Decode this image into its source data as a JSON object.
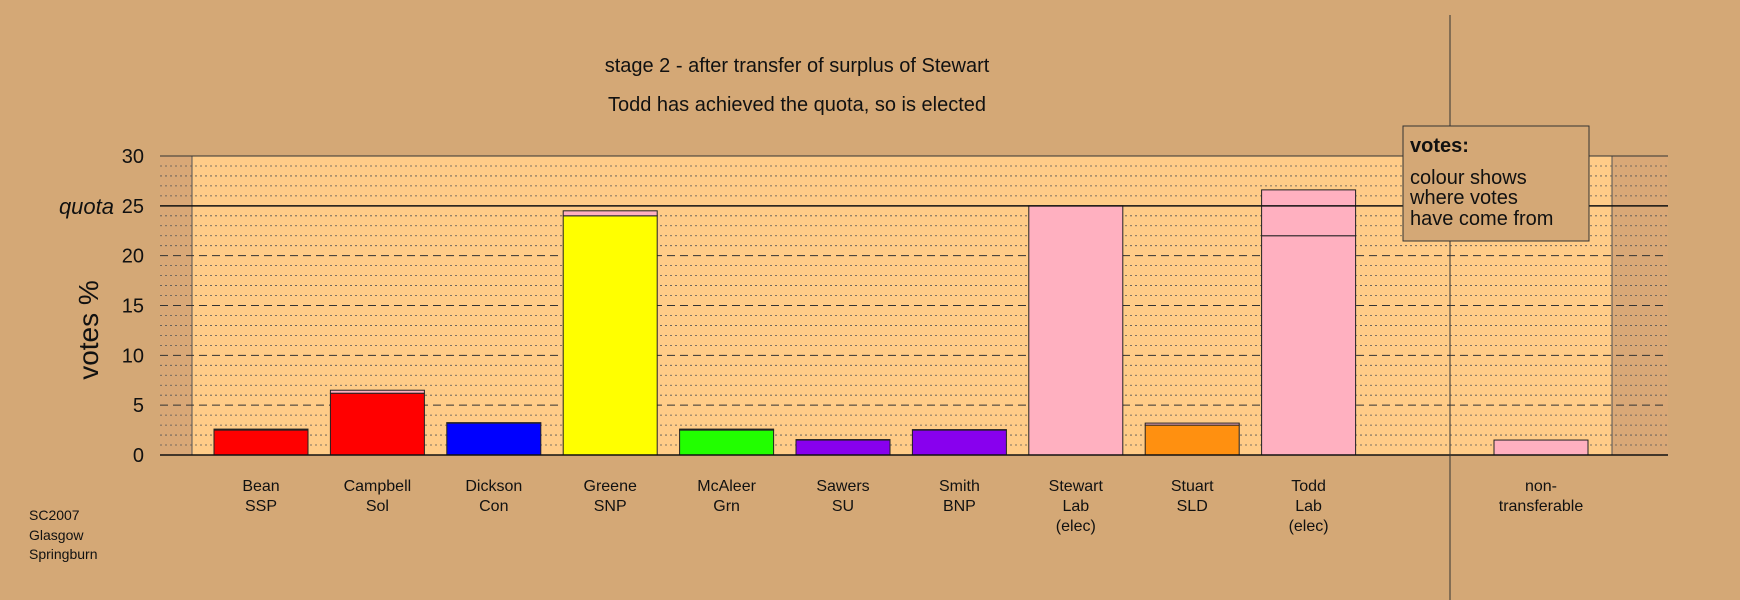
{
  "chart_data": {
    "type": "bar",
    "title": "stage 2 - after transfer of surplus of Stewart",
    "subtitle": "Todd has achieved the quota, so is elected",
    "ylabel": "votes %",
    "ylim": [
      0,
      30
    ],
    "yticks": [
      0,
      5,
      10,
      15,
      20,
      25,
      30
    ],
    "quota": {
      "value": 25,
      "label": "quota"
    },
    "grid": true,
    "legend": {
      "title": "votes:",
      "lines": [
        "colour shows",
        "where votes",
        "have come from"
      ],
      "placement": "top-right"
    },
    "categories": [
      {
        "name": "Bean",
        "party": "SSP",
        "status": ""
      },
      {
        "name": "Campbell",
        "party": "Sol",
        "status": ""
      },
      {
        "name": "Dickson",
        "party": "Con",
        "status": ""
      },
      {
        "name": "Greene",
        "party": "SNP",
        "status": ""
      },
      {
        "name": "McAleer",
        "party": "Grn",
        "status": ""
      },
      {
        "name": "Sawers",
        "party": "SU",
        "status": ""
      },
      {
        "name": "Smith",
        "party": "BNP",
        "status": ""
      },
      {
        "name": "Stewart",
        "party": "Lab",
        "status": "(elec)"
      },
      {
        "name": "Stuart",
        "party": "SLD",
        "status": ""
      },
      {
        "name": "Todd",
        "party": "Lab",
        "status": "(elec)"
      }
    ],
    "bars": [
      {
        "segments": [
          {
            "value": 2.5,
            "color": "#ff0000"
          },
          {
            "value": 0.1,
            "color": "#ffb0c0"
          }
        ]
      },
      {
        "segments": [
          {
            "value": 6.2,
            "color": "#ff0000"
          },
          {
            "value": 0.3,
            "color": "#ffb0c0"
          }
        ]
      },
      {
        "segments": [
          {
            "value": 3.2,
            "color": "#0000ff"
          },
          {
            "value": 0.05,
            "color": "#ffb0c0"
          }
        ]
      },
      {
        "segments": [
          {
            "value": 24.0,
            "color": "#ffff00"
          },
          {
            "value": 0.5,
            "color": "#ffb0c0"
          }
        ]
      },
      {
        "segments": [
          {
            "value": 2.5,
            "color": "#22ff00"
          },
          {
            "value": 0.1,
            "color": "#ffb0c0"
          }
        ]
      },
      {
        "segments": [
          {
            "value": 1.5,
            "color": "#8800ee"
          },
          {
            "value": 0.05,
            "color": "#ffb0c0"
          }
        ]
      },
      {
        "segments": [
          {
            "value": 2.5,
            "color": "#8800ee"
          },
          {
            "value": 0.05,
            "color": "#ffb0c0"
          }
        ]
      },
      {
        "segments": [
          {
            "value": 25.0,
            "color": "#ffb0c0"
          }
        ]
      },
      {
        "segments": [
          {
            "value": 3.0,
            "color": "#ff9010"
          },
          {
            "value": 0.2,
            "color": "#ffb0c0"
          }
        ]
      },
      {
        "segments": [
          {
            "value": 22.0,
            "color": "#ffb0c0"
          },
          {
            "value": 4.6,
            "color": "#ffb0c0"
          }
        ]
      }
    ],
    "nontransferable": {
      "label": [
        "non-",
        "transferable"
      ],
      "segments": [
        {
          "value": 1.5,
          "color": "#ffb0c0"
        }
      ]
    },
    "footer": [
      "SC2007",
      "Glasgow",
      "Springburn"
    ]
  }
}
